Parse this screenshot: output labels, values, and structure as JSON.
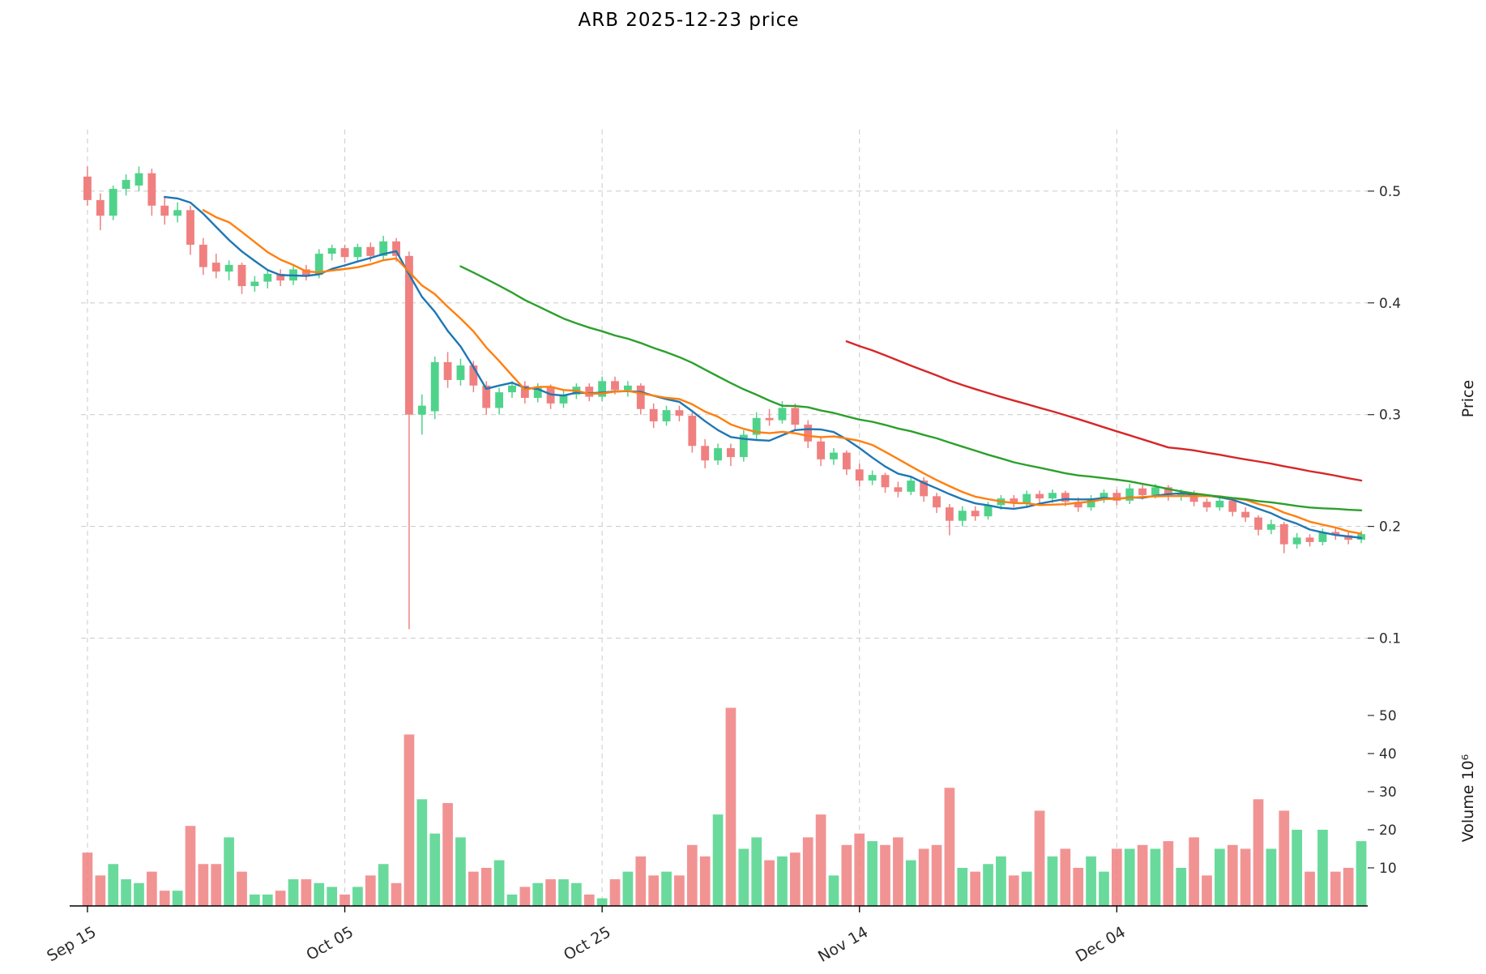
{
  "chart_data": {
    "type": "candlestick",
    "title": "ARB  2025-12-23  price",
    "start_date": "2025-09-15",
    "end_date": "2025-12-23",
    "frequency": "daily",
    "price_axis": {
      "label": "Price",
      "ticks": [
        0.1,
        0.2,
        0.3,
        0.4,
        0.5
      ],
      "range": [
        0.075,
        0.555
      ]
    },
    "volume_axis": {
      "label": "Volume  10⁶",
      "ticks": [
        10,
        20,
        30,
        40,
        50
      ],
      "range": [
        0,
        57
      ],
      "unit": "millions"
    },
    "x_ticks": [
      {
        "index": 0,
        "label": "Sep 15"
      },
      {
        "index": 20,
        "label": "Oct 05"
      },
      {
        "index": 40,
        "label": "Oct 25"
      },
      {
        "index": 60,
        "label": "Nov 14"
      },
      {
        "index": 80,
        "label": "Dec 04"
      }
    ],
    "colors": {
      "up": "#4fd38b",
      "down": "#f08080",
      "grid": "#cfcfcf",
      "axis": "#2b2b2b"
    },
    "moving_averages": [
      {
        "name": "MA7",
        "window": 7,
        "color": "#1f77b4"
      },
      {
        "name": "MA10",
        "window": 10,
        "color": "#ff7f0e"
      },
      {
        "name": "MA30",
        "window": 30,
        "color": "#2ca02c"
      },
      {
        "name": "MA60",
        "window": 60,
        "color": "#d62728"
      }
    ],
    "candles": {
      "columns": [
        "open",
        "high",
        "low",
        "close",
        "volume_millions"
      ],
      "rows": [
        [
          0.513,
          0.522,
          0.487,
          0.492,
          14
        ],
        [
          0.492,
          0.498,
          0.465,
          0.478,
          8
        ],
        [
          0.478,
          0.505,
          0.474,
          0.502,
          11
        ],
        [
          0.502,
          0.515,
          0.496,
          0.51,
          7
        ],
        [
          0.505,
          0.522,
          0.5,
          0.516,
          6
        ],
        [
          0.516,
          0.52,
          0.478,
          0.487,
          9
        ],
        [
          0.487,
          0.495,
          0.47,
          0.478,
          4
        ],
        [
          0.478,
          0.49,
          0.472,
          0.483,
          4
        ],
        [
          0.483,
          0.487,
          0.443,
          0.452,
          21
        ],
        [
          0.452,
          0.458,
          0.425,
          0.432,
          11
        ],
        [
          0.436,
          0.444,
          0.422,
          0.428,
          11
        ],
        [
          0.428,
          0.438,
          0.42,
          0.434,
          18
        ],
        [
          0.434,
          0.436,
          0.408,
          0.415,
          9
        ],
        [
          0.415,
          0.424,
          0.41,
          0.419,
          3
        ],
        [
          0.419,
          0.43,
          0.413,
          0.426,
          3
        ],
        [
          0.426,
          0.43,
          0.415,
          0.42,
          4
        ],
        [
          0.42,
          0.434,
          0.416,
          0.43,
          7
        ],
        [
          0.43,
          0.434,
          0.42,
          0.425,
          7
        ],
        [
          0.425,
          0.448,
          0.422,
          0.444,
          6
        ],
        [
          0.444,
          0.452,
          0.438,
          0.449,
          5
        ],
        [
          0.449,
          0.452,
          0.436,
          0.441,
          3
        ],
        [
          0.441,
          0.453,
          0.437,
          0.45,
          5
        ],
        [
          0.45,
          0.454,
          0.437,
          0.442,
          8
        ],
        [
          0.442,
          0.46,
          0.438,
          0.455,
          11
        ],
        [
          0.455,
          0.458,
          0.437,
          0.442,
          6
        ],
        [
          0.442,
          0.446,
          0.108,
          0.3,
          45
        ],
        [
          0.3,
          0.318,
          0.282,
          0.308,
          28
        ],
        [
          0.303,
          0.352,
          0.296,
          0.347,
          19
        ],
        [
          0.347,
          0.356,
          0.324,
          0.331,
          27
        ],
        [
          0.331,
          0.35,
          0.326,
          0.344,
          18
        ],
        [
          0.344,
          0.348,
          0.32,
          0.326,
          9
        ],
        [
          0.326,
          0.33,
          0.3,
          0.306,
          10
        ],
        [
          0.306,
          0.324,
          0.3,
          0.32,
          12
        ],
        [
          0.32,
          0.33,
          0.315,
          0.326,
          3
        ],
        [
          0.326,
          0.33,
          0.31,
          0.315,
          5
        ],
        [
          0.315,
          0.328,
          0.311,
          0.324,
          6
        ],
        [
          0.324,
          0.327,
          0.305,
          0.31,
          7
        ],
        [
          0.31,
          0.322,
          0.306,
          0.318,
          7
        ],
        [
          0.318,
          0.328,
          0.314,
          0.325,
          6
        ],
        [
          0.325,
          0.328,
          0.312,
          0.316,
          3
        ],
        [
          0.316,
          0.334,
          0.312,
          0.33,
          2
        ],
        [
          0.33,
          0.334,
          0.318,
          0.322,
          7
        ],
        [
          0.322,
          0.33,
          0.316,
          0.326,
          9
        ],
        [
          0.326,
          0.328,
          0.3,
          0.305,
          13
        ],
        [
          0.305,
          0.31,
          0.288,
          0.294,
          8
        ],
        [
          0.294,
          0.308,
          0.29,
          0.304,
          9
        ],
        [
          0.304,
          0.308,
          0.294,
          0.299,
          8
        ],
        [
          0.299,
          0.302,
          0.266,
          0.272,
          16
        ],
        [
          0.272,
          0.278,
          0.252,
          0.259,
          13
        ],
        [
          0.259,
          0.274,
          0.255,
          0.27,
          24
        ],
        [
          0.27,
          0.274,
          0.254,
          0.262,
          52
        ],
        [
          0.262,
          0.286,
          0.258,
          0.282,
          15
        ],
        [
          0.282,
          0.302,
          0.278,
          0.297,
          18
        ],
        [
          0.297,
          0.305,
          0.29,
          0.295,
          12
        ],
        [
          0.295,
          0.312,
          0.292,
          0.306,
          13
        ],
        [
          0.306,
          0.31,
          0.286,
          0.291,
          14
        ],
        [
          0.291,
          0.295,
          0.27,
          0.276,
          18
        ],
        [
          0.276,
          0.28,
          0.254,
          0.26,
          24
        ],
        [
          0.26,
          0.27,
          0.255,
          0.266,
          8
        ],
        [
          0.266,
          0.268,
          0.246,
          0.251,
          16
        ],
        [
          0.251,
          0.256,
          0.236,
          0.241,
          19
        ],
        [
          0.241,
          0.25,
          0.237,
          0.246,
          17
        ],
        [
          0.246,
          0.248,
          0.23,
          0.235,
          16
        ],
        [
          0.235,
          0.24,
          0.226,
          0.231,
          18
        ],
        [
          0.231,
          0.245,
          0.228,
          0.241,
          12
        ],
        [
          0.241,
          0.244,
          0.222,
          0.227,
          15
        ],
        [
          0.227,
          0.23,
          0.212,
          0.217,
          16
        ],
        [
          0.217,
          0.22,
          0.192,
          0.205,
          31
        ],
        [
          0.205,
          0.218,
          0.2,
          0.214,
          10
        ],
        [
          0.214,
          0.218,
          0.205,
          0.209,
          9
        ],
        [
          0.209,
          0.222,
          0.206,
          0.219,
          11
        ],
        [
          0.219,
          0.228,
          0.215,
          0.225,
          13
        ],
        [
          0.225,
          0.228,
          0.217,
          0.221,
          8
        ],
        [
          0.221,
          0.232,
          0.218,
          0.229,
          9
        ],
        [
          0.229,
          0.232,
          0.221,
          0.225,
          25
        ],
        [
          0.225,
          0.233,
          0.221,
          0.23,
          13
        ],
        [
          0.23,
          0.232,
          0.218,
          0.222,
          15
        ],
        [
          0.222,
          0.226,
          0.213,
          0.217,
          10
        ],
        [
          0.217,
          0.228,
          0.214,
          0.225,
          13
        ],
        [
          0.225,
          0.233,
          0.221,
          0.23,
          9
        ],
        [
          0.23,
          0.233,
          0.219,
          0.223,
          15
        ],
        [
          0.223,
          0.238,
          0.22,
          0.234,
          15
        ],
        [
          0.234,
          0.237,
          0.224,
          0.228,
          16
        ],
        [
          0.228,
          0.238,
          0.225,
          0.235,
          15
        ],
        [
          0.235,
          0.237,
          0.223,
          0.227,
          17
        ],
        [
          0.227,
          0.233,
          0.223,
          0.23,
          10
        ],
        [
          0.23,
          0.232,
          0.218,
          0.222,
          18
        ],
        [
          0.222,
          0.225,
          0.213,
          0.217,
          8
        ],
        [
          0.217,
          0.226,
          0.214,
          0.223,
          15
        ],
        [
          0.223,
          0.225,
          0.209,
          0.213,
          16
        ],
        [
          0.213,
          0.217,
          0.204,
          0.208,
          15
        ],
        [
          0.208,
          0.21,
          0.192,
          0.197,
          28
        ],
        [
          0.197,
          0.206,
          0.193,
          0.202,
          15
        ],
        [
          0.202,
          0.204,
          0.176,
          0.184,
          25
        ],
        [
          0.184,
          0.194,
          0.18,
          0.19,
          20
        ],
        [
          0.19,
          0.193,
          0.182,
          0.186,
          9
        ],
        [
          0.186,
          0.198,
          0.183,
          0.195,
          20
        ],
        [
          0.195,
          0.199,
          0.188,
          0.192,
          9
        ],
        [
          0.192,
          0.196,
          0.184,
          0.188,
          10
        ],
        [
          0.188,
          0.196,
          0.185,
          0.193,
          17
        ]
      ]
    }
  }
}
